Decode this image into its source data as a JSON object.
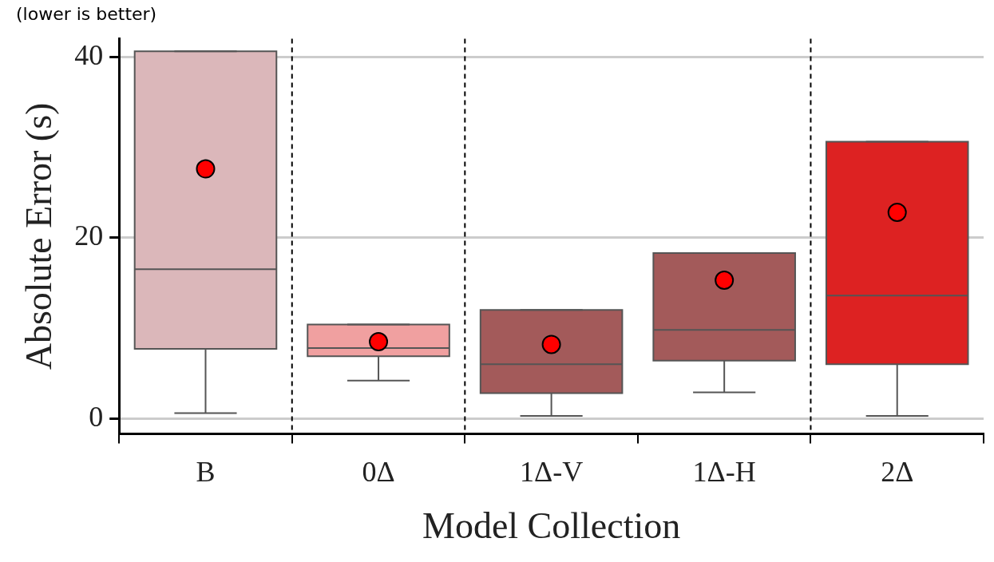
{
  "chart_data": {
    "type": "box",
    "subtitle": "(lower is better)",
    "xlabel": "Model Collection",
    "ylabel": "Absolute Error (s)",
    "categories": [
      "B",
      "0Δ",
      "1Δ-V",
      "1Δ-H",
      "2Δ"
    ],
    "colors": [
      "#dbb7ba",
      "#f0a0a0",
      "#a35a5a",
      "#a35a5a",
      "#dd2222"
    ],
    "boxes": [
      {
        "low": 0.6,
        "q1": 7.7,
        "median": 16.5,
        "q3": 40.6,
        "high": 40.6,
        "mean": 27.6
      },
      {
        "low": 4.2,
        "q1": 6.9,
        "median": 7.8,
        "q3": 10.4,
        "high": 10.4,
        "mean": 8.5
      },
      {
        "low": 0.3,
        "q1": 2.8,
        "median": 6.0,
        "q3": 12.0,
        "high": 12.0,
        "mean": 8.2
      },
      {
        "low": 2.9,
        "q1": 6.4,
        "median": 9.8,
        "q3": 18.3,
        "high": 18.3,
        "mean": 15.3
      },
      {
        "low": 0.3,
        "q1": 6.0,
        "median": 13.6,
        "q3": 30.6,
        "high": 30.6,
        "mean": 22.8
      }
    ],
    "ylim": [
      -1.7,
      42
    ],
    "yticks": [
      0,
      20,
      40
    ],
    "grid": "y",
    "legend": false,
    "marker": "circle"
  }
}
